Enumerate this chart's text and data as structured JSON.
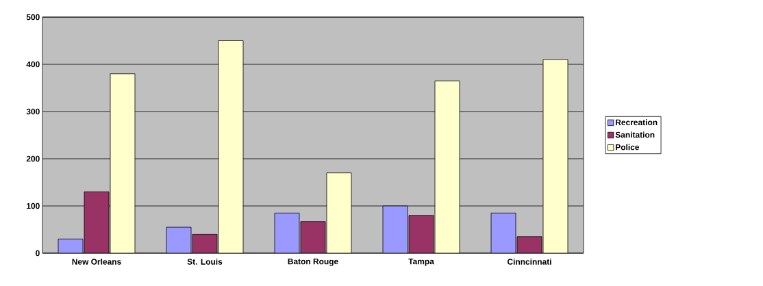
{
  "chart_data": {
    "type": "bar",
    "categories": [
      "New Orleans",
      "St. Louis",
      "Baton Rouge",
      "Tampa",
      "Cinncinnati"
    ],
    "series": [
      {
        "name": "Recreation",
        "color": "#9999ff",
        "values": [
          30,
          55,
          85,
          100,
          85
        ]
      },
      {
        "name": "Sanitation",
        "color": "#993366",
        "values": [
          130,
          40,
          67,
          80,
          35
        ]
      },
      {
        "name": "Police",
        "color": "#ffffcc",
        "values": [
          380,
          450,
          170,
          365,
          410
        ]
      }
    ],
    "ylim": [
      0,
      500
    ],
    "yticks": [
      0,
      100,
      200,
      300,
      400,
      500
    ],
    "grid": "y",
    "legend": "right"
  }
}
